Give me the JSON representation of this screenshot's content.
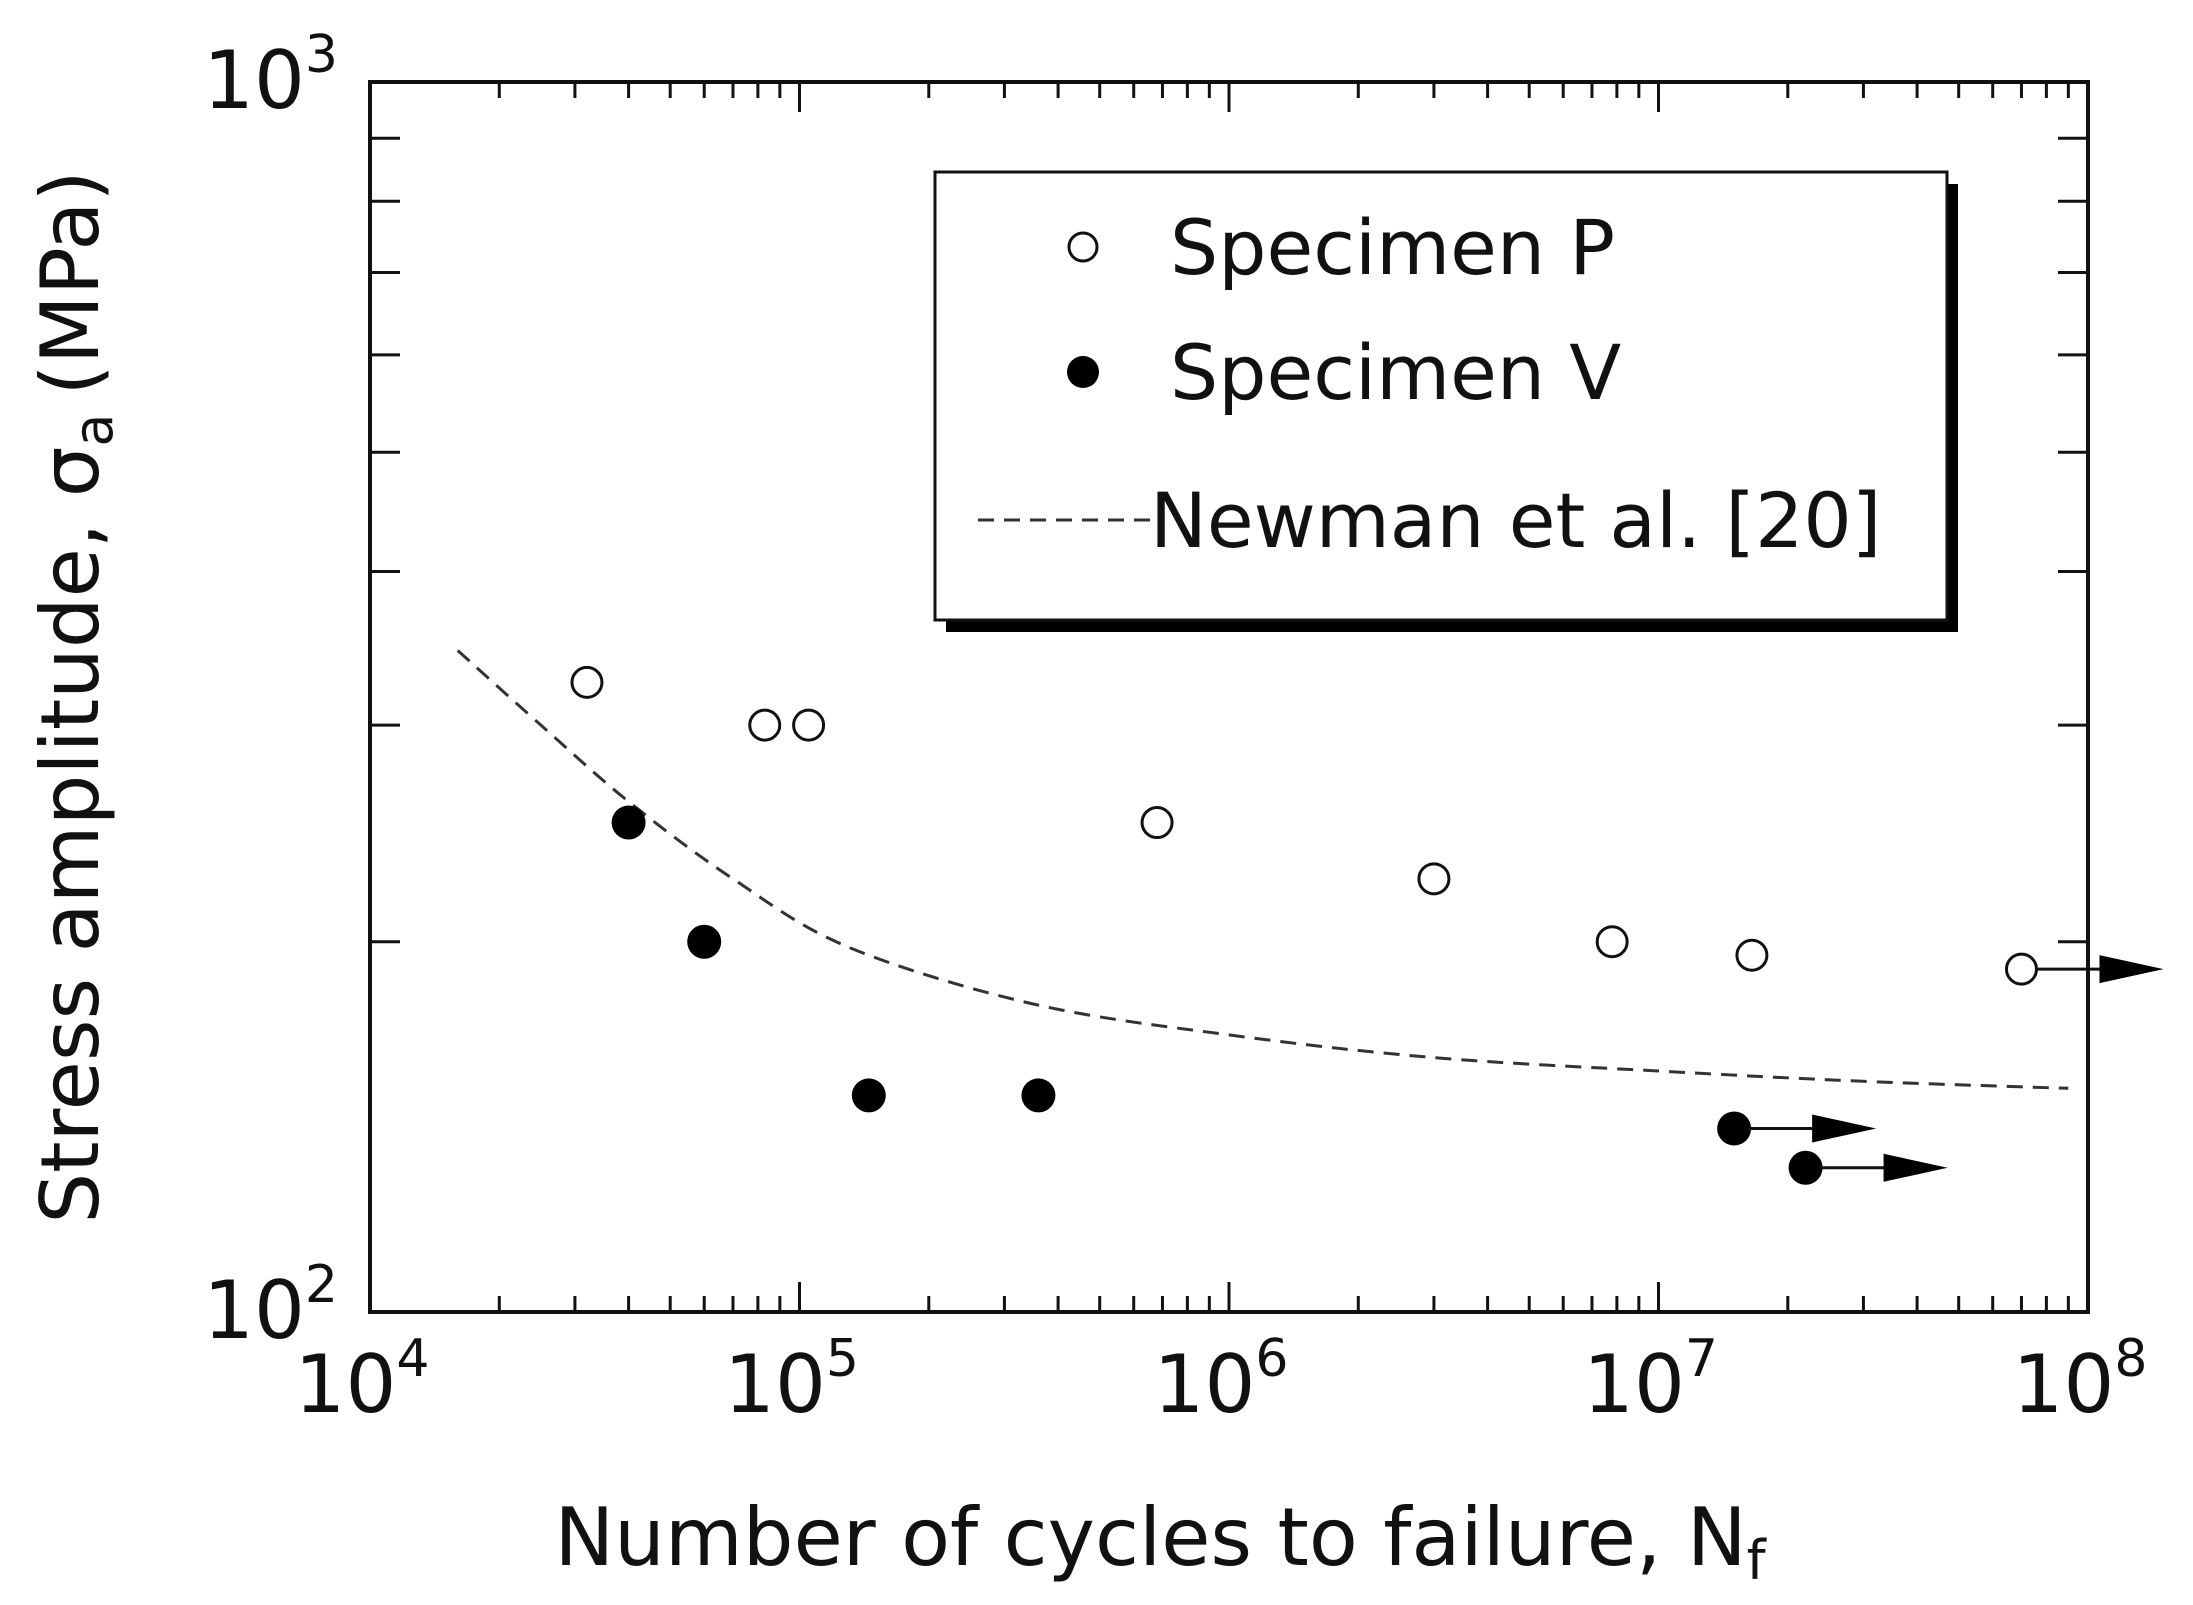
{
  "chart_data": {
    "type": "scatter",
    "xscale": "log",
    "yscale": "log",
    "xlim": [
      10000,
      100000000
    ],
    "ylim": [
      100,
      1000
    ],
    "xlabel": "Number of cycles to failure, N",
    "xlabel_sub": "f",
    "ylabel": "Stress amplitude, σ",
    "ylabel_sub": "a",
    "ylabel_unit": "(MPa)",
    "x_ticks": [
      {
        "base": "10",
        "exp": "4",
        "value": 10000
      },
      {
        "base": "10",
        "exp": "5",
        "value": 100000
      },
      {
        "base": "10",
        "exp": "6",
        "value": 1000000
      },
      {
        "base": "10",
        "exp": "7",
        "value": 10000000
      },
      {
        "base": "10",
        "exp": "8",
        "value": 100000000
      }
    ],
    "y_ticks": [
      {
        "base": "10",
        "exp": "2",
        "value": 100
      },
      {
        "base": "10",
        "exp": "3",
        "value": 1000
      }
    ],
    "legend_position": "top-right",
    "series": [
      {
        "name": "Specimen P",
        "marker": "open-circle",
        "points": [
          {
            "x": 32000,
            "y": 325,
            "runout": false
          },
          {
            "x": 83000,
            "y": 300,
            "runout": false
          },
          {
            "x": 105000,
            "y": 300,
            "runout": false
          },
          {
            "x": 680000,
            "y": 250,
            "runout": false
          },
          {
            "x": 3000000,
            "y": 225,
            "runout": false
          },
          {
            "x": 7800000,
            "y": 200,
            "runout": false
          },
          {
            "x": 16500000,
            "y": 195,
            "runout": false
          },
          {
            "x": 70000000,
            "y": 190,
            "runout": true
          }
        ]
      },
      {
        "name": "Specimen V",
        "marker": "filled-circle",
        "points": [
          {
            "x": 40000,
            "y": 250,
            "runout": false
          },
          {
            "x": 60000,
            "y": 200,
            "runout": false
          },
          {
            "x": 145000,
            "y": 150,
            "runout": false
          },
          {
            "x": 360000,
            "y": 150,
            "runout": false
          },
          {
            "x": 15000000,
            "y": 141,
            "runout": true
          },
          {
            "x": 22000000,
            "y": 131,
            "runout": true
          }
        ]
      },
      {
        "name": "Newman et al. [20]",
        "marker": "dashed-line",
        "x": [
          16000,
          25000,
          40000,
          70000,
          130000,
          350000,
          1000000,
          3000000,
          10000000,
          30000000,
          90000000
        ],
        "y": [
          345,
          300,
          260,
          225,
          198,
          178,
          168,
          161,
          157,
          154,
          152
        ]
      }
    ]
  }
}
